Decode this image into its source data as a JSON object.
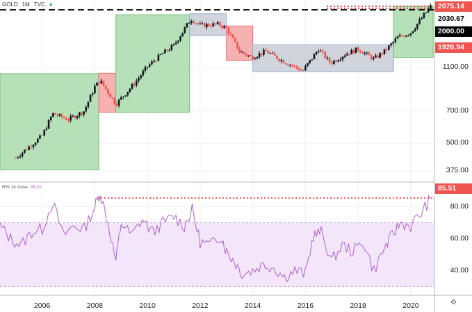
{
  "header": {
    "symbol": "GOLD",
    "interval": "1M",
    "source": "TVC",
    "status_dot": "●"
  },
  "rsi_header": {
    "label": "RSI 14 close",
    "value": "85.22"
  },
  "price_labels": [
    {
      "text": "2075.14",
      "style": "red"
    },
    {
      "text": "2030.67",
      "style": "white"
    },
    {
      "text": "2000.00",
      "style": "black"
    },
    {
      "text": "1920.94",
      "style": "red"
    }
  ],
  "rsi_label": {
    "text": "85.51",
    "style": "red"
  },
  "settings_icon": "gear-icon",
  "colors": {
    "up_candle": "#26a69a",
    "down_candle": "#ef5350",
    "body_dark": "#131722",
    "green_box": "#a9dbab",
    "red_box": "#f4a3a3",
    "gray_box": "#c9ccd4",
    "rsi_line": "#b05fc9",
    "rsi_band": "#f3e6fb",
    "dotted_red": "#ef5350",
    "dashed_black": "#000000"
  },
  "chart_data": [
    {
      "type": "candlestick",
      "scale": "log",
      "y_ticks": [
        375,
        500,
        700,
        1100
      ],
      "y_tick_labels": [
        "375.00",
        "500.00",
        "700.00",
        "1100.00"
      ],
      "x_ticks": [
        2006,
        2008,
        2010,
        2012,
        2014,
        2016,
        2018,
        2020
      ],
      "x_range": [
        2004.4,
        2020.9
      ],
      "grid": true,
      "zones": [
        {
          "x": [
            2004.4,
            2008.15
          ],
          "y": [
            380,
            1030
          ],
          "kind": "green"
        },
        {
          "x": [
            2008.15,
            2008.8
          ],
          "y": [
            690,
            1035
          ],
          "kind": "red"
        },
        {
          "x": [
            2008.8,
            2011.6
          ],
          "y": [
            690,
            1900
          ],
          "kind": "green"
        },
        {
          "x": [
            2011.6,
            2013.0
          ],
          "y": [
            1530,
            1920
          ],
          "kind": "gray"
        },
        {
          "x": [
            2013.0,
            2014.0
          ],
          "y": [
            1180,
            1690
          ],
          "kind": "red"
        },
        {
          "x": [
            2014.0,
            2019.35
          ],
          "y": [
            1050,
            1390
          ],
          "kind": "gray"
        },
        {
          "x": [
            2019.35,
            2020.85
          ],
          "y": [
            1220,
            2075
          ],
          "kind": "green"
        }
      ],
      "ref_lines": [
        {
          "y": 2075.14,
          "style": "dotted-red"
        },
        {
          "y": 2030.67,
          "style": "dotted-red"
        },
        {
          "y": 2000.0,
          "style": "dashed-black"
        }
      ],
      "series": [
        {
          "x": 2005.0,
          "y": 430
        },
        {
          "x": 2006.0,
          "y": 540
        },
        {
          "x": 2006.4,
          "y": 680
        },
        {
          "x": 2007.0,
          "y": 640
        },
        {
          "x": 2007.6,
          "y": 700
        },
        {
          "x": 2008.0,
          "y": 900
        },
        {
          "x": 2008.2,
          "y": 960
        },
        {
          "x": 2008.8,
          "y": 750
        },
        {
          "x": 2009.5,
          "y": 930
        },
        {
          "x": 2010.0,
          "y": 1110
        },
        {
          "x": 2010.5,
          "y": 1250
        },
        {
          "x": 2011.0,
          "y": 1380
        },
        {
          "x": 2011.65,
          "y": 1820
        },
        {
          "x": 2012.0,
          "y": 1700
        },
        {
          "x": 2012.7,
          "y": 1720
        },
        {
          "x": 2013.0,
          "y": 1650
        },
        {
          "x": 2013.5,
          "y": 1300
        },
        {
          "x": 2013.95,
          "y": 1220
        },
        {
          "x": 2014.5,
          "y": 1300
        },
        {
          "x": 2015.0,
          "y": 1200
        },
        {
          "x": 2015.9,
          "y": 1060
        },
        {
          "x": 2016.5,
          "y": 1330
        },
        {
          "x": 2016.95,
          "y": 1150
        },
        {
          "x": 2017.5,
          "y": 1260
        },
        {
          "x": 2018.0,
          "y": 1330
        },
        {
          "x": 2018.6,
          "y": 1200
        },
        {
          "x": 2019.0,
          "y": 1300
        },
        {
          "x": 2019.5,
          "y": 1500
        },
        {
          "x": 2020.0,
          "y": 1580
        },
        {
          "x": 2020.6,
          "y": 1960
        },
        {
          "x": 2020.75,
          "y": 2070
        }
      ]
    },
    {
      "type": "line",
      "title": "RSI 14 close",
      "y_ticks": [
        40,
        60,
        80
      ],
      "y_tick_labels": [
        "40.00",
        "60.00",
        "80.00"
      ],
      "ylim": [
        25,
        95
      ],
      "band": [
        30,
        70
      ],
      "ref_line": 85.51,
      "series": [
        {
          "name": "RSI 14 close",
          "x": [
            2004.4,
            2004.8,
            2005.2,
            2005.6,
            2006.0,
            2006.4,
            2006.8,
            2007.2,
            2007.6,
            2008.0,
            2008.2,
            2008.5,
            2008.8,
            2009.0,
            2009.4,
            2009.8,
            2010.2,
            2010.6,
            2011.0,
            2011.4,
            2011.7,
            2012.0,
            2012.4,
            2012.8,
            2013.0,
            2013.3,
            2013.6,
            2014.0,
            2014.4,
            2014.8,
            2015.2,
            2015.6,
            2016.0,
            2016.3,
            2016.6,
            2017.0,
            2017.4,
            2017.8,
            2018.2,
            2018.6,
            2019.0,
            2019.3,
            2019.6,
            2020.0,
            2020.4,
            2020.75
          ],
          "values": [
            68,
            60,
            56,
            64,
            66,
            83,
            62,
            68,
            66,
            80,
            89,
            70,
            46,
            70,
            62,
            72,
            64,
            70,
            74,
            68,
            78,
            58,
            56,
            62,
            52,
            46,
            38,
            40,
            44,
            42,
            36,
            40,
            38,
            62,
            64,
            46,
            56,
            52,
            58,
            40,
            54,
            62,
            70,
            68,
            76,
            85
          ]
        }
      ]
    }
  ]
}
